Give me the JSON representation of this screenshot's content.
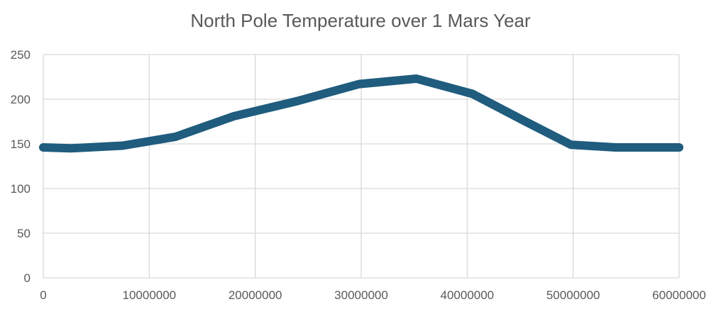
{
  "chart_data": {
    "type": "line",
    "title": "North Pole Temperature over 1 Mars Year",
    "xlabel": "",
    "ylabel": "",
    "xlim": [
      0,
      60000000
    ],
    "ylim": [
      0,
      250
    ],
    "x_ticks": [
      "0",
      "10000000",
      "20000000",
      "30000000",
      "40000000",
      "50000000",
      "60000000"
    ],
    "y_ticks": [
      "0",
      "50",
      "100",
      "150",
      "200",
      "250"
    ],
    "grid": true,
    "legend": "none",
    "series": [
      {
        "color": "#1f5c7e",
        "points": [
          {
            "x": 0,
            "y": 146
          },
          {
            "x": 2600000,
            "y": 145
          },
          {
            "x": 7500000,
            "y": 148
          },
          {
            "x": 12500000,
            "y": 158
          },
          {
            "x": 18000000,
            "y": 181
          },
          {
            "x": 24000000,
            "y": 198
          },
          {
            "x": 29800000,
            "y": 217
          },
          {
            "x": 35200000,
            "y": 223
          },
          {
            "x": 40500000,
            "y": 206
          },
          {
            "x": 45500000,
            "y": 175
          },
          {
            "x": 49800000,
            "y": 149
          },
          {
            "x": 54000000,
            "y": 146
          },
          {
            "x": 60000000,
            "y": 146
          }
        ]
      }
    ]
  }
}
